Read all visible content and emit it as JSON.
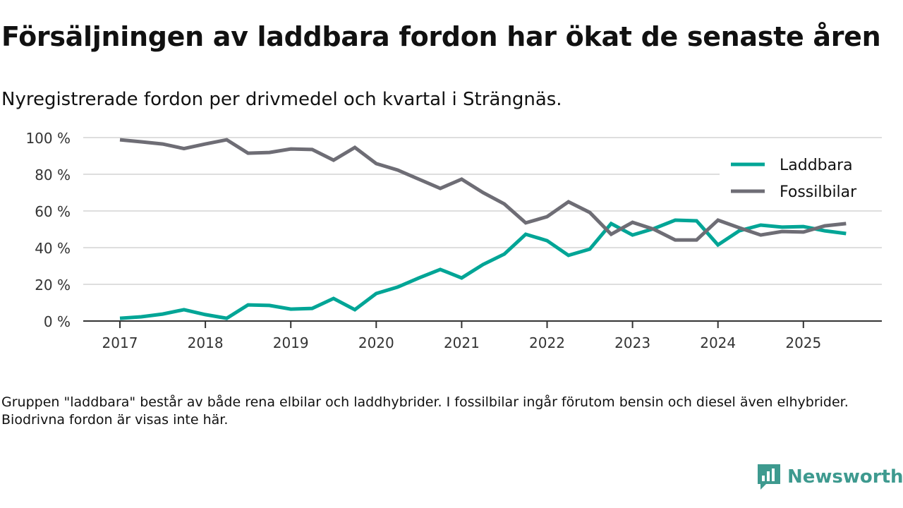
{
  "title": "Försäljningen av laddbara fordon har ökat de senaste åren",
  "subtitle": "Nyregistrerade fordon per drivmedel och kvartal i Strängnäs.",
  "note": "Gruppen \"laddbara\" består av både rena elbilar och laddhybrider. I fossilbilar ingår förutom bensin och diesel även elhybrider. Biodrivna fordon är visas inte här.",
  "logo": {
    "text": "Newsworthy",
    "color": "#3e9a8f"
  },
  "chart_data": {
    "type": "line",
    "title": "Försäljningen av laddbara fordon har ökat de senaste åren",
    "xlabel": "",
    "ylabel": "",
    "x_start": 2017,
    "x_step": 0.25,
    "xlim": [
      2016.6,
      2026.3
    ],
    "ylim": [
      0,
      100
    ],
    "x_ticks": [
      2017,
      2018,
      2019,
      2020,
      2021,
      2022,
      2023,
      2024,
      2025
    ],
    "x_tick_labels": [
      "2017",
      "2018",
      "2019",
      "2020",
      "2021",
      "2022",
      "2023",
      "2024",
      "2025"
    ],
    "y_ticks": [
      0,
      20,
      40,
      60,
      80,
      100
    ],
    "y_tick_labels": [
      "0 %",
      "20 %",
      "40 %",
      "60 %",
      "80 %",
      "100 %"
    ],
    "grid": true,
    "legend_position": "top-right",
    "series": [
      {
        "name": "Laddbara",
        "color": "#00a596",
        "values": [
          1.5,
          2.3,
          3.8,
          6.2,
          3.5,
          1.5,
          8.8,
          8.5,
          6.5,
          6.9,
          12.3,
          6.2,
          15,
          18.5,
          23.5,
          28.1,
          23.5,
          30.8,
          36.5,
          47.3,
          43.8,
          35.8,
          39.2,
          53.1,
          46.9,
          50.4,
          55,
          54.6,
          41.5,
          49.2,
          52.3,
          51.2,
          51.5,
          49.2,
          47.7
        ]
      },
      {
        "name": "Fossilbilar",
        "color": "#6e6d75",
        "values": [
          98.8,
          97.7,
          96.5,
          94,
          96.5,
          98.8,
          91.5,
          91.9,
          93.8,
          93.5,
          87.7,
          94.6,
          85.8,
          82.3,
          77.3,
          72.3,
          77.3,
          70,
          63.8,
          53.5,
          56.9,
          65,
          59.2,
          47.3,
          53.8,
          50,
          44.2,
          44.2,
          55,
          50.8,
          46.9,
          48.8,
          48.5,
          51.9,
          53.1
        ]
      }
    ]
  }
}
